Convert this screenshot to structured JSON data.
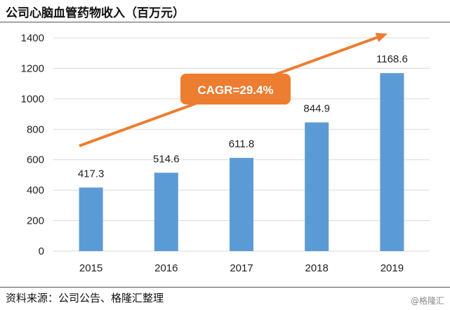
{
  "header": {
    "title": "公司心脑血管药物收入（百万元）"
  },
  "footer": {
    "source": "资料来源：公司公告、格隆汇整理",
    "watermark": "@格隆汇"
  },
  "chart_data": {
    "type": "bar",
    "title": "公司心脑血管药物收入（百万元）",
    "categories": [
      "2015",
      "2016",
      "2017",
      "2018",
      "2019"
    ],
    "values": [
      417.3,
      514.6,
      611.8,
      844.9,
      1168.6
    ],
    "value_labels": [
      "417.3",
      "514.6",
      "611.8",
      "844.9",
      "1168.6"
    ],
    "ylim": [
      0,
      1400
    ],
    "yticks": [
      0,
      200,
      400,
      600,
      800,
      1000,
      1200,
      1400
    ],
    "grid": true,
    "xlabel": "",
    "ylabel": "",
    "annotation": "CAGR=29.4%",
    "colors": {
      "bar": "#5b9bd5",
      "arrow": "#ed7d31",
      "grid": "#d9d9d9"
    }
  }
}
